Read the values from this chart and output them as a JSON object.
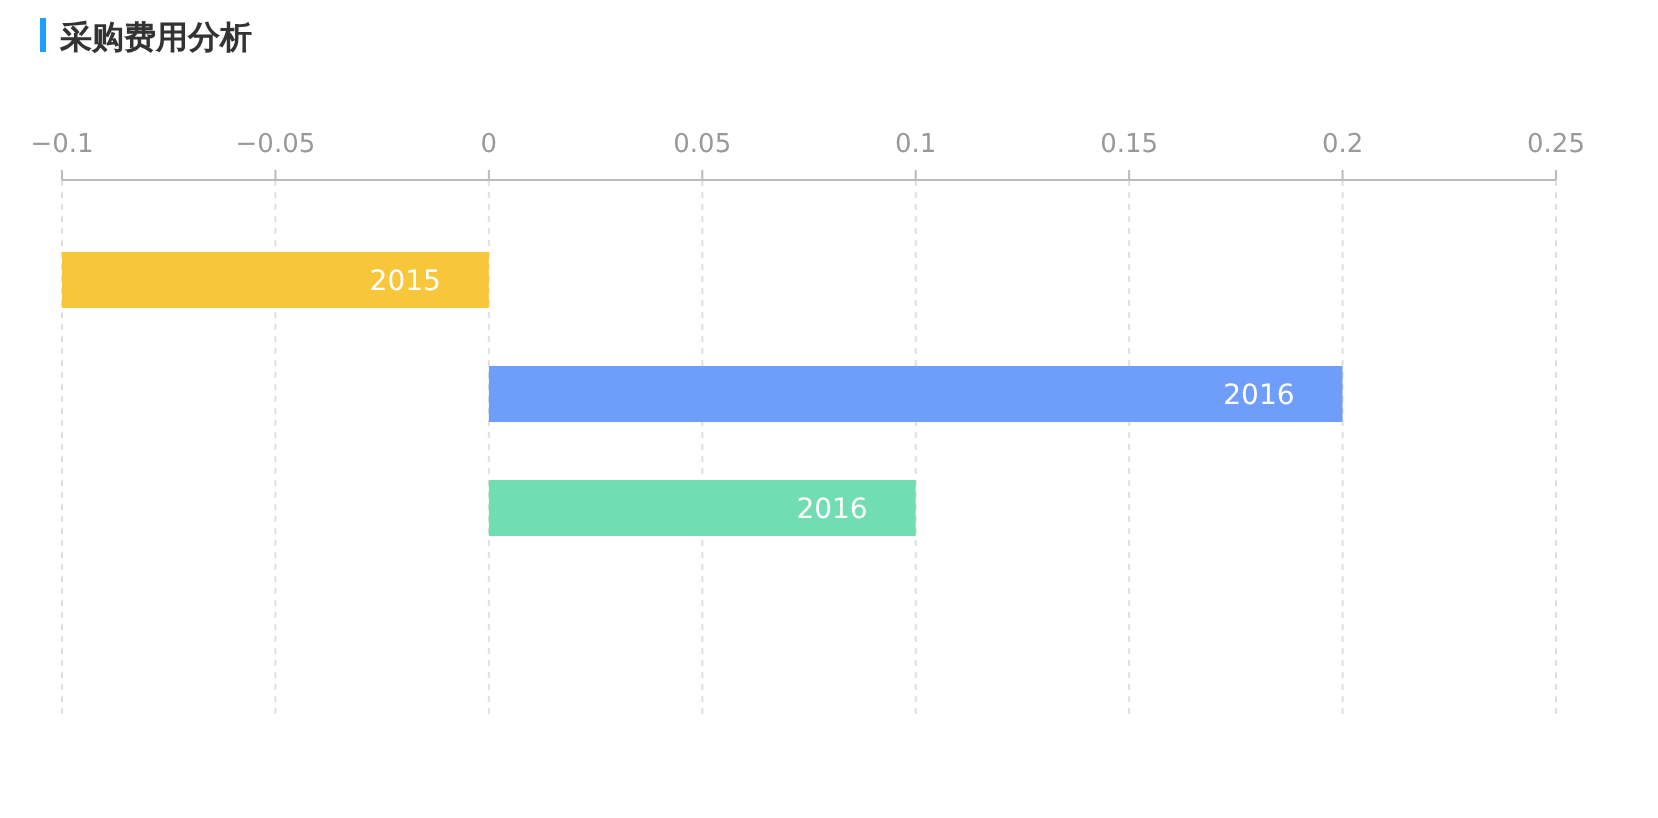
{
  "chart_data": {
    "type": "bar",
    "orientation": "horizontal",
    "title": "采购费用分析",
    "categories": [
      "2015",
      "2016",
      "2016",
      null
    ],
    "values": [
      -0.1,
      0.2,
      0.1,
      null
    ],
    "colors": [
      "#f7c63b",
      "#6f9dfa",
      "#70deb2",
      null
    ],
    "xlim": [
      -0.1,
      0.25
    ],
    "xticks": [
      -0.1,
      -0.05,
      0,
      0.05,
      0.1,
      0.15,
      0.2,
      0.25
    ],
    "grid": "x"
  }
}
